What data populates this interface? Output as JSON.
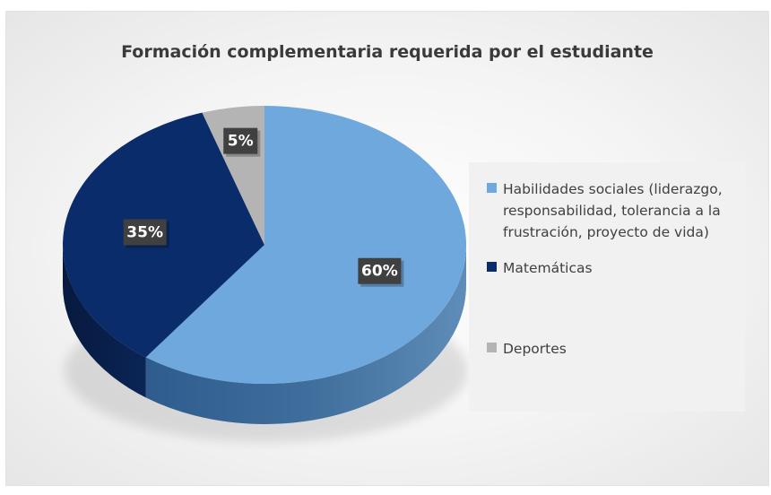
{
  "chart_data": {
    "type": "pie",
    "title": "Formación complementaria requerida por el estudiante",
    "categories": [
      "Habilidades sociales (liderazgo, responsabilidad, tolerancia a la frustración, proyecto de vida)",
      "Matemáticas",
      "Deportes"
    ],
    "values": [
      60,
      35,
      5
    ],
    "data_labels": [
      "60%",
      "35%",
      "5%"
    ],
    "colors": [
      "#6fa8dc",
      "#0b2c6b",
      "#b4b4b4"
    ],
    "style": "3d",
    "legend_position": "right"
  },
  "legend": {
    "items": [
      {
        "lines": [
          "Habilidades sociales (liderazgo,",
          "responsabilidad, tolerancia a la",
          "frustración, proyecto de vida)"
        ],
        "color": "#6fa8dc"
      },
      {
        "lines": [
          "Matemáticas"
        ],
        "color": "#0b2c6b"
      },
      {
        "lines": [
          "Deportes"
        ],
        "color": "#b4b4b4"
      }
    ]
  }
}
